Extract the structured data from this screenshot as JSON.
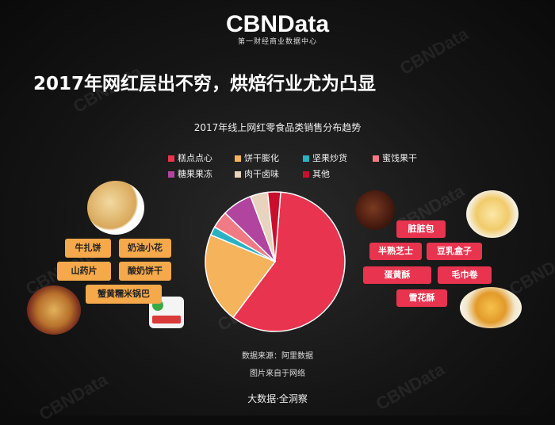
{
  "brand": {
    "logo": "CBNData",
    "tagline": "第一财经商业数据中心"
  },
  "headline": "2017年网红层出不穷，烘焙行业尤为凸显",
  "chart_data": {
    "type": "pie",
    "title": "2017年线上网红零食品类销售分布趋势",
    "categories": [
      "糕点点心",
      "饼干膨化",
      "坚果炒货",
      "蜜饯果干",
      "糖果果冻",
      "肉干卤味",
      "其他"
    ],
    "values": [
      59,
      21,
      2,
      4,
      7,
      4,
      3
    ],
    "colors": [
      "#e8344f",
      "#f5b35c",
      "#2ab1c4",
      "#f07b84",
      "#b1449f",
      "#e8d3bf",
      "#c8102e"
    ],
    "legend_position": "top"
  },
  "left_tags": [
    "牛扎饼",
    "奶油小花",
    "山药片",
    "酸奶饼干",
    "蟹黄糯米锅巴"
  ],
  "right_tags": [
    "脏脏包",
    "半熟芝士",
    "豆乳盒子",
    "蛋黄酥",
    "毛巾卷",
    "雪花酥"
  ],
  "source": "数据来源：阿里数据",
  "image_note": "图片来自于网络",
  "footer": "大数据·全洞察",
  "watermark": "CBNData"
}
